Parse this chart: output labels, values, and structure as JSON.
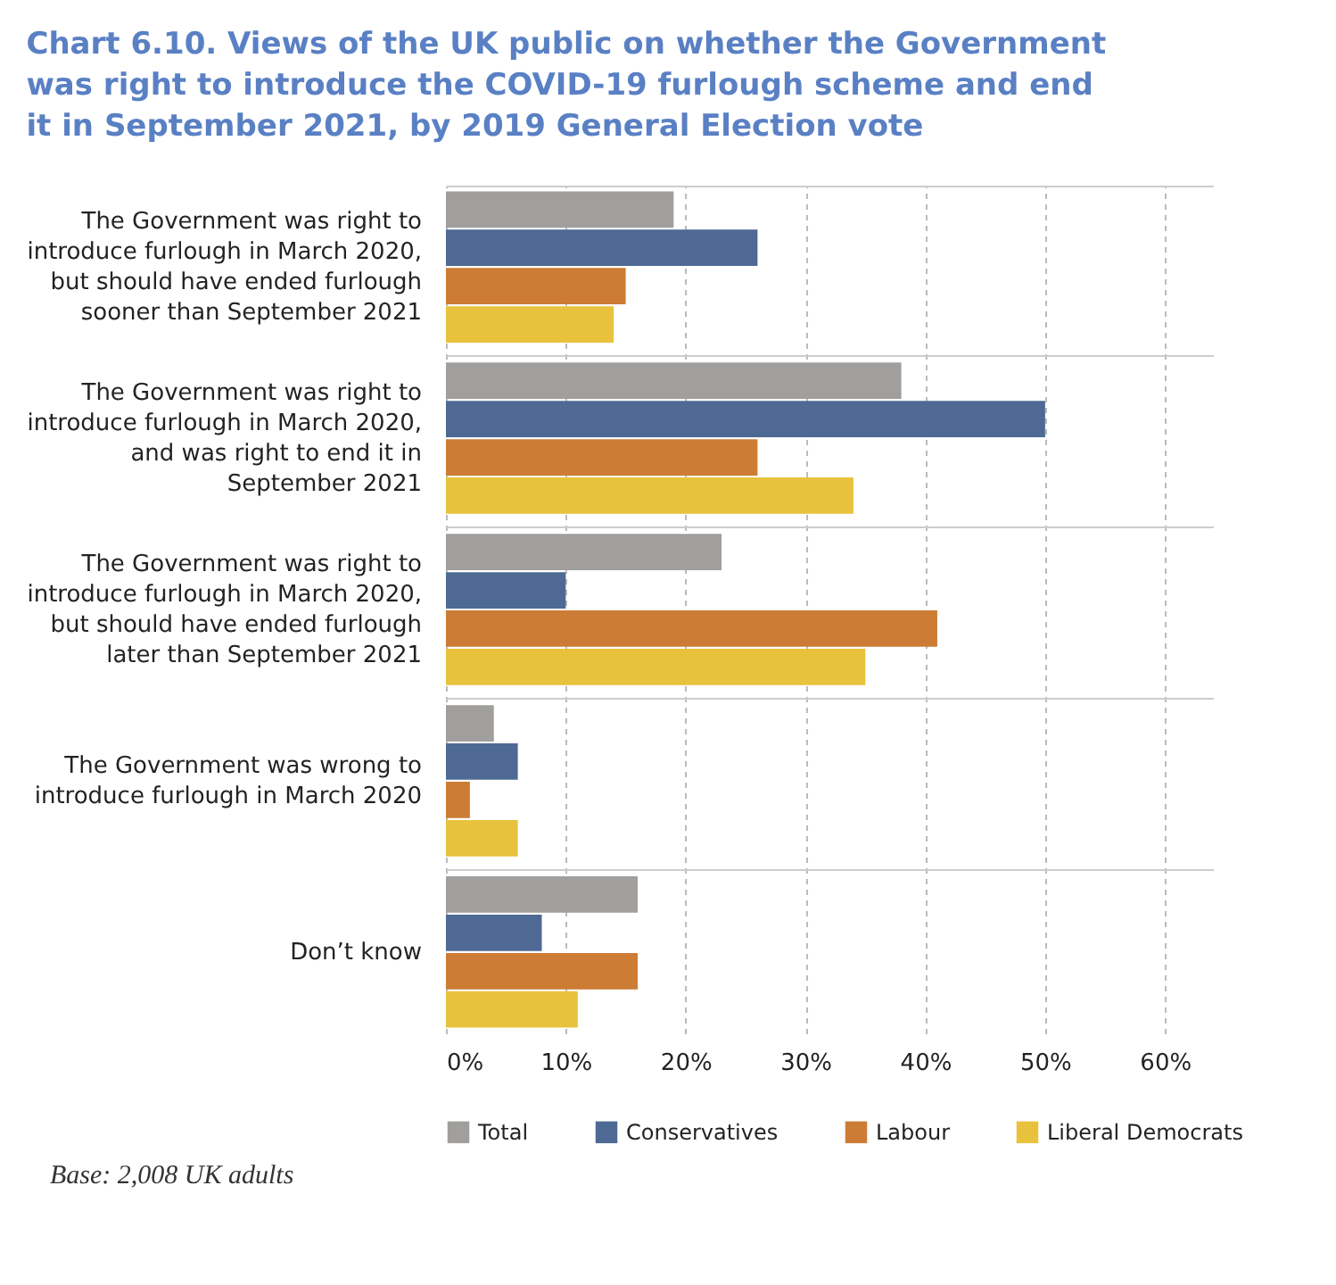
{
  "chart_data": {
    "type": "bar",
    "orientation": "horizontal",
    "title": "Chart 6.10. Views of the UK public on whether the Government was right to introduce the COVID-19 furlough scheme and end it in September 2021, by 2019 General Election vote",
    "categories": [
      "The Government was right to introduce furlough in March 2020, but should have ended furlough sooner than September 2021",
      "The Government was right to introduce furlough in March 2020, and was right to end it in September 2021",
      "The Government was right to introduce furlough in March 2020, but should have ended furlough later than September 2021",
      "The Government was wrong to introduce furlough in March 2020",
      "Don’t know"
    ],
    "series": [
      {
        "name": "Total",
        "color": "#a09f9d",
        "values": [
          19,
          38,
          23,
          4,
          16
        ]
      },
      {
        "name": "Conservatives",
        "color": "#4e6a94",
        "values": [
          26,
          50,
          10,
          6,
          8
        ]
      },
      {
        "name": "Labour",
        "color": "#cc7c35",
        "values": [
          15,
          26,
          41,
          2,
          16
        ]
      },
      {
        "name": "Liberal Democrats",
        "color": "#e8c23c",
        "values": [
          14,
          34,
          35,
          6,
          11
        ]
      }
    ],
    "xlim": [
      0,
      64
    ],
    "xticks": [
      {
        "value": 0,
        "label": "0%"
      },
      {
        "value": 10,
        "label": "10%"
      },
      {
        "value": 20,
        "label": "20%"
      },
      {
        "value": 30,
        "label": "30%"
      },
      {
        "value": 40,
        "label": "40%"
      },
      {
        "value": 50,
        "label": "50%"
      },
      {
        "value": 60,
        "label": "60%"
      }
    ],
    "grid": true,
    "legend": "bottom",
    "annotations": [
      "Base: 2,008 UK adults"
    ]
  }
}
